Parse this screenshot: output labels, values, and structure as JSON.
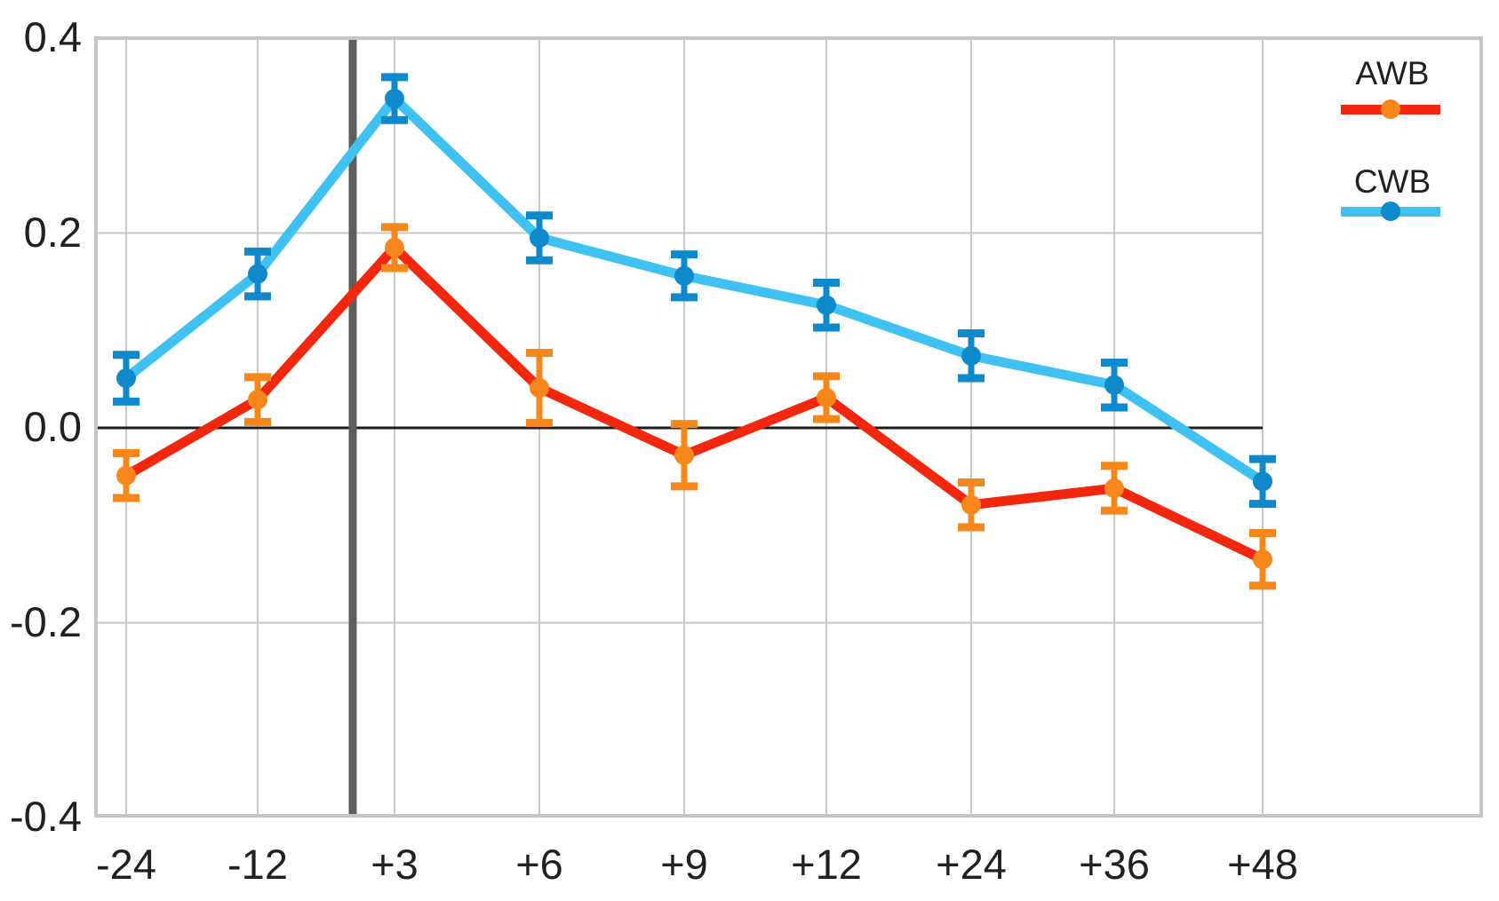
{
  "chart_data": {
    "type": "line",
    "title": "",
    "xlabel": "",
    "ylabel": "",
    "categories": [
      "-24",
      "-12",
      "+3",
      "+6",
      "+9",
      "+12",
      "+24",
      "+36",
      "+48"
    ],
    "series": [
      {
        "name": "AWB",
        "line_color": "#f2270d",
        "marker_color": "#f7871b",
        "values": [
          -0.049,
          0.029,
          0.185,
          0.041,
          -0.028,
          0.031,
          -0.079,
          -0.062,
          -0.135
        ],
        "errors": [
          0.023,
          0.023,
          0.021,
          0.036,
          0.032,
          0.022,
          0.023,
          0.023,
          0.027
        ]
      },
      {
        "name": "CWB",
        "line_color": "#3fc2f2",
        "marker_color": "#0d89cc",
        "values": [
          0.051,
          0.158,
          0.338,
          0.195,
          0.156,
          0.126,
          0.074,
          0.044,
          -0.055
        ],
        "errors": [
          0.024,
          0.023,
          0.022,
          0.023,
          0.022,
          0.023,
          0.023,
          0.023,
          0.023
        ]
      }
    ],
    "y_ticks": [
      0.4,
      0.2,
      0.0,
      -0.2,
      -0.4
    ],
    "y_tick_labels": [
      "0.4",
      "0.2",
      "0.0",
      "-0.2",
      "-0.4"
    ],
    "ylim": [
      -0.4,
      0.4
    ],
    "grid": true,
    "zero_line": true,
    "event_line_between": [
      "-12",
      "+3"
    ],
    "legend_position": "top-right",
    "legend_order": [
      "AWB",
      "CWB"
    ]
  },
  "colors": {
    "background": "#ffffff",
    "frame": "#c5c5c5",
    "grid": "#c8c8c8",
    "zero_line": "#1c1c1c",
    "event_line": "#5e5e5e",
    "text": "#231f20"
  }
}
